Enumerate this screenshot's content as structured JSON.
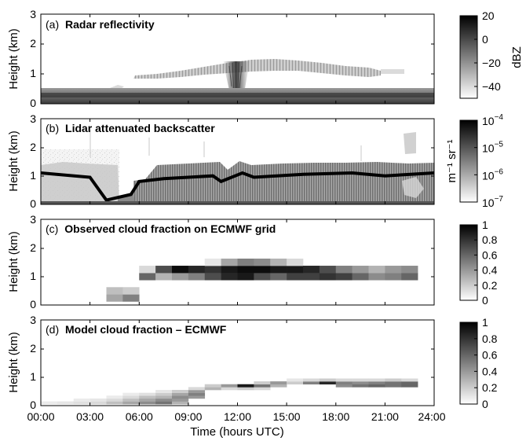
{
  "chart_data": [
    {
      "type": "heatmap",
      "panel": "a",
      "title_letter": "(a)",
      "title": "Radar reflectivity",
      "ylabel": "Height (km)",
      "ylim": [
        0,
        3
      ],
      "yticks": [
        "0",
        "1",
        "2",
        "3"
      ],
      "xlim": [
        0,
        24
      ],
      "colorbar": {
        "label": "dBZ",
        "range": [
          -50,
          20
        ],
        "ticks": [
          "20",
          "0",
          "−20",
          "−40"
        ],
        "tick_values": [
          20,
          0,
          -20,
          -40
        ]
      },
      "features": {
        "surface_band": {
          "top_km": 0.3,
          "x_range": [
            0,
            24
          ]
        },
        "cloud_layer": {
          "x_range": [
            5.4,
            20.5
          ],
          "base_km": 0.9,
          "top_km": 1.4
        },
        "deep_core": {
          "center_h": 12.3,
          "top_km": 1.45
        }
      }
    },
    {
      "type": "heatmap",
      "panel": "b",
      "title_letter": "(b)",
      "title": "Lidar attenuated backscatter",
      "ylabel": "Height (km)",
      "ylim": [
        0,
        3
      ],
      "yticks": [
        "0",
        "1",
        "2",
        "3"
      ],
      "xlim": [
        0,
        24
      ],
      "colorbar": {
        "label": "m⁻¹ sr⁻¹",
        "log_range": [
          -7,
          -4
        ],
        "ticks": [
          -4,
          -5,
          -6,
          -7
        ]
      },
      "features": {
        "cloud_base_km": [
          [
            0,
            1.1
          ],
          [
            3,
            0.95
          ],
          [
            4,
            0.15
          ],
          [
            5.5,
            0.35
          ],
          [
            6,
            0.8
          ],
          [
            7.5,
            0.9
          ],
          [
            9,
            0.95
          ],
          [
            10.5,
            1.0
          ],
          [
            11,
            0.8
          ],
          [
            12.3,
            1.1
          ],
          [
            13,
            0.95
          ],
          [
            16,
            1.05
          ],
          [
            19,
            1.1
          ],
          [
            21,
            1.0
          ],
          [
            24,
            1.1
          ]
        ]
      }
    },
    {
      "type": "heatmap",
      "panel": "c",
      "title_letter": "(c)",
      "title": "Observed cloud fraction on ECMWF grid",
      "ylabel": "Height (km)",
      "ylim": [
        0,
        3
      ],
      "yticks": [
        "0",
        "1",
        "2",
        "3"
      ],
      "xlim": [
        0,
        24
      ],
      "colorbar": {
        "range": [
          0,
          1
        ],
        "ticks": [
          "1",
          "0.8",
          "0.6",
          "0.4",
          "0.2",
          "0"
        ],
        "tick_values": [
          1,
          0.8,
          0.6,
          0.4,
          0.2,
          0
        ]
      },
      "cells": [
        [
          4,
          0.25,
          0.35
        ],
        [
          4,
          0.5,
          0.25
        ],
        [
          5,
          0.25,
          0.5
        ],
        [
          5,
          0.5,
          0.2
        ],
        [
          6,
          1.0,
          0.6
        ],
        [
          6,
          1.25,
          0.15
        ],
        [
          7,
          1.0,
          0.3
        ],
        [
          7,
          1.25,
          0.7
        ],
        [
          8,
          1.0,
          0.4
        ],
        [
          8,
          1.25,
          0.95
        ],
        [
          9,
          1.0,
          0.5
        ],
        [
          9,
          1.25,
          0.85
        ],
        [
          10,
          1.0,
          0.7
        ],
        [
          10,
          1.25,
          0.8
        ],
        [
          10,
          1.5,
          0.1
        ],
        [
          11,
          1.0,
          0.85
        ],
        [
          11,
          1.25,
          0.9
        ],
        [
          11,
          1.5,
          0.35
        ],
        [
          12,
          1.0,
          0.9
        ],
        [
          12,
          1.25,
          0.95
        ],
        [
          12,
          1.5,
          0.5
        ],
        [
          13,
          1.0,
          0.7
        ],
        [
          13,
          1.25,
          0.95
        ],
        [
          13,
          1.5,
          0.45
        ],
        [
          14,
          1.0,
          0.6
        ],
        [
          14,
          1.25,
          0.9
        ],
        [
          14,
          1.5,
          0.3
        ],
        [
          15,
          1.0,
          0.75
        ],
        [
          15,
          1.25,
          0.9
        ],
        [
          15,
          1.5,
          0.15
        ],
        [
          16,
          1.0,
          0.75
        ],
        [
          16,
          1.25,
          0.85
        ],
        [
          17,
          1.0,
          0.8
        ],
        [
          17,
          1.25,
          0.7
        ],
        [
          18,
          1.0,
          0.75
        ],
        [
          18,
          1.25,
          0.5
        ],
        [
          19,
          1.0,
          0.6
        ],
        [
          19,
          1.25,
          0.4
        ],
        [
          20,
          1.0,
          0.45
        ],
        [
          20,
          1.25,
          0.3
        ],
        [
          21,
          1.0,
          0.5
        ],
        [
          21,
          1.25,
          0.4
        ],
        [
          22,
          1.0,
          0.6
        ],
        [
          22,
          1.25,
          0.45
        ]
      ]
    },
    {
      "type": "heatmap",
      "panel": "d",
      "title_letter": "(d)",
      "title": "Model cloud fraction – ECMWF",
      "ylabel": "Height (km)",
      "xlabel": "Time (hours UTC)",
      "ylim": [
        0,
        3
      ],
      "yticks": [
        "0",
        "1",
        "2",
        "3"
      ],
      "xlim": [
        0,
        24
      ],
      "xticks": [
        "00:00",
        "03:00",
        "06:00",
        "09:00",
        "12:00",
        "15:00",
        "18:00",
        "21:00",
        "24:00"
      ],
      "colorbar": {
        "range": [
          0,
          1
        ],
        "ticks": [
          "1",
          "0.8",
          "0.6",
          "0.4",
          "0.2",
          "0"
        ],
        "tick_values": [
          1,
          0.8,
          0.6,
          0.4,
          0.2,
          0
        ]
      },
      "cells": [
        [
          0,
          0.1,
          0.08
        ],
        [
          1,
          0.1,
          0.1
        ],
        [
          2,
          0.1,
          0.12
        ],
        [
          2,
          0.2,
          0.08
        ],
        [
          3,
          0.1,
          0.15
        ],
        [
          3,
          0.2,
          0.1
        ],
        [
          4,
          0.1,
          0.25
        ],
        [
          4,
          0.2,
          0.15
        ],
        [
          4,
          0.3,
          0.08
        ],
        [
          5,
          0.1,
          0.35
        ],
        [
          5,
          0.2,
          0.25
        ],
        [
          5,
          0.3,
          0.15
        ],
        [
          5,
          0.4,
          0.08
        ],
        [
          6,
          0.1,
          0.45
        ],
        [
          6,
          0.2,
          0.35
        ],
        [
          6,
          0.3,
          0.25
        ],
        [
          6,
          0.4,
          0.12
        ],
        [
          7,
          0.1,
          0.55
        ],
        [
          7,
          0.2,
          0.45
        ],
        [
          7,
          0.3,
          0.3
        ],
        [
          7,
          0.4,
          0.2
        ],
        [
          7,
          0.5,
          0.1
        ],
        [
          8,
          0.1,
          0.3
        ],
        [
          8,
          0.2,
          0.4
        ],
        [
          8,
          0.3,
          0.45
        ],
        [
          8,
          0.4,
          0.35
        ],
        [
          8,
          0.5,
          0.2
        ],
        [
          9,
          0.3,
          0.4
        ],
        [
          9,
          0.4,
          0.5
        ],
        [
          9,
          0.5,
          0.4
        ],
        [
          9,
          0.6,
          0.15
        ],
        [
          10,
          0.6,
          0.3
        ],
        [
          10,
          0.7,
          0.2
        ],
        [
          11,
          0.6,
          0.15
        ],
        [
          11,
          0.7,
          0.4
        ],
        [
          12,
          0.6,
          0.2
        ],
        [
          12,
          0.7,
          0.9
        ],
        [
          13,
          0.6,
          0.15
        ],
        [
          13,
          0.7,
          0.55
        ],
        [
          13,
          0.8,
          0.2
        ],
        [
          14,
          0.7,
          0.3
        ],
        [
          14,
          0.8,
          0.4
        ],
        [
          15,
          0.8,
          0.2
        ],
        [
          15,
          0.9,
          0.1
        ],
        [
          16,
          0.8,
          0.5
        ],
        [
          16,
          0.9,
          0.15
        ],
        [
          17,
          0.8,
          0.85
        ],
        [
          17,
          0.9,
          0.2
        ],
        [
          18,
          0.7,
          0.45
        ],
        [
          18,
          0.8,
          0.5
        ],
        [
          18,
          0.9,
          0.15
        ],
        [
          19,
          0.7,
          0.55
        ],
        [
          19,
          0.8,
          0.45
        ],
        [
          19,
          0.9,
          0.15
        ],
        [
          20,
          0.7,
          0.6
        ],
        [
          20,
          0.8,
          0.5
        ],
        [
          20,
          0.9,
          0.15
        ],
        [
          21,
          0.7,
          0.55
        ],
        [
          21,
          0.8,
          0.55
        ],
        [
          21,
          0.9,
          0.2
        ],
        [
          22,
          0.7,
          0.6
        ],
        [
          22,
          0.8,
          0.6
        ],
        [
          22,
          0.9,
          0.15
        ]
      ]
    }
  ]
}
